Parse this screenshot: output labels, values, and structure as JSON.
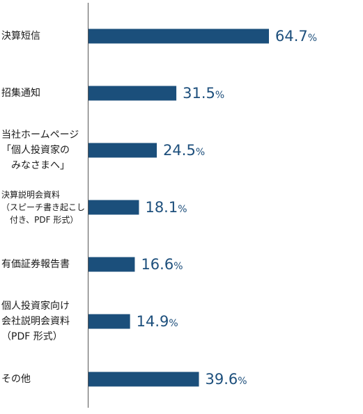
{
  "chart_data": {
    "type": "bar",
    "orientation": "horizontal",
    "bar_color": "#1b4f7b",
    "label_color": "#1d4f7c",
    "unit": "%",
    "xlim": [
      0,
      100
    ],
    "grid": false,
    "categories": [
      {
        "lines": [
          "決算短信"
        ],
        "value": 64.7
      },
      {
        "lines": [
          "招集通知"
        ],
        "value": 31.5
      },
      {
        "lines": [
          "当社ホームページ",
          "「個人投資家の",
          "　みなさまへ」"
        ],
        "value": 24.5
      },
      {
        "lines": [
          "決算説明会資料",
          "（スピーチ書き起こし",
          "　付き、PDF 形式）"
        ],
        "value": 18.1
      },
      {
        "lines": [
          "有価証券報告書"
        ],
        "value": 16.6
      },
      {
        "lines": [
          "個人投資家向け",
          "会社説明会資料",
          "（PDF 形式）"
        ],
        "value": 14.9
      },
      {
        "lines": [
          "その他"
        ],
        "value": 39.6
      }
    ]
  }
}
